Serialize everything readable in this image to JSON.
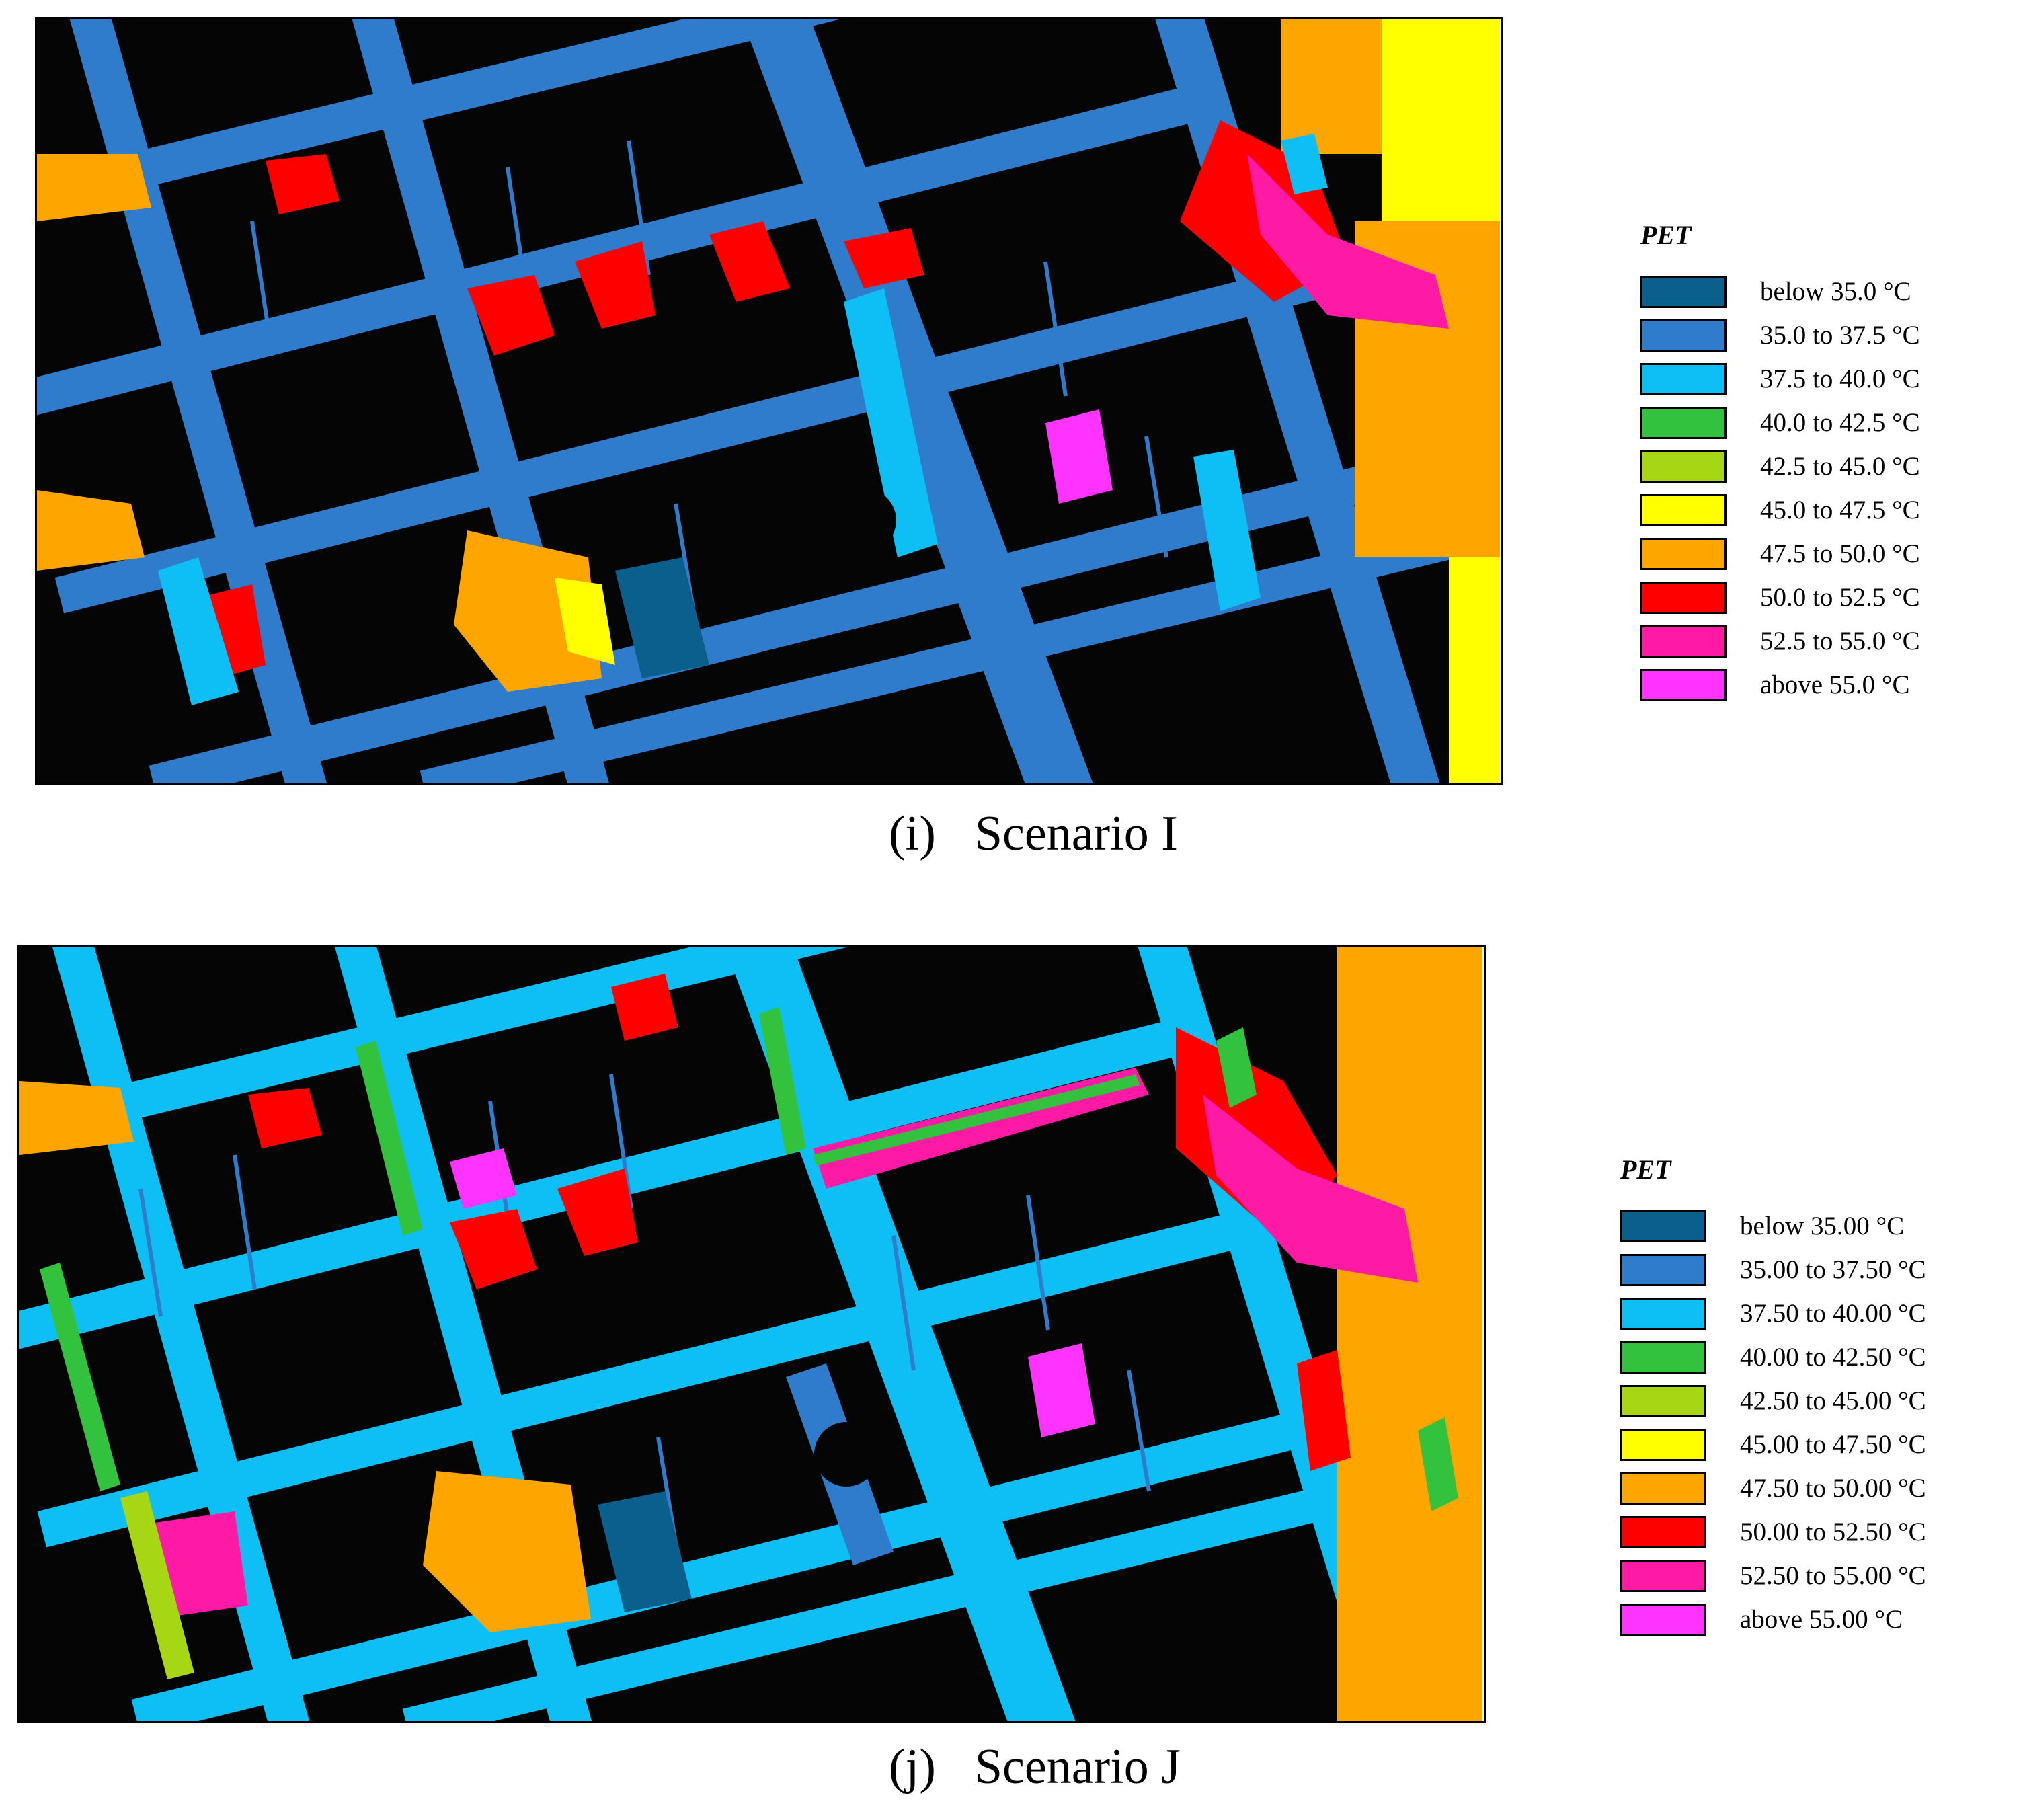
{
  "colors": {
    "buildings": "#050505",
    "below35": "#0a5f8c",
    "c35_375": "#2f7ccc",
    "c375_40": "#0dbff5",
    "c40_425": "#33c23d",
    "c425_45": "#a6d614",
    "c45_475": "#ffff00",
    "c475_50": "#ffa500",
    "c50_525": "#ff0000",
    "c525_55": "#ff1aa6",
    "above55": "#ff33ff"
  },
  "panels": [
    {
      "id": "i",
      "caption_tag": "(i)",
      "caption_title": "Scenario I",
      "legend_title": "PET",
      "legend": [
        {
          "label": "below 35.0 °C",
          "color": "#0a5f8c"
        },
        {
          "label": "35.0 to 37.5 °C",
          "color": "#2f7ccc"
        },
        {
          "label": "37.5 to 40.0 °C",
          "color": "#0dbff5"
        },
        {
          "label": "40.0 to 42.5 °C",
          "color": "#33c23d"
        },
        {
          "label": "42.5 to 45.0 °C",
          "color": "#a6d614"
        },
        {
          "label": "45.0 to 47.5 °C",
          "color": "#ffff00"
        },
        {
          "label": "47.5 to 50.0 °C",
          "color": "#ffa500"
        },
        {
          "label": "50.0 to 52.5 °C",
          "color": "#ff0000"
        },
        {
          "label": "52.5 to 55.0 °C",
          "color": "#ff1aa6"
        },
        {
          "label": "above 55.0 °C",
          "color": "#ff33ff"
        }
      ]
    },
    {
      "id": "j",
      "caption_tag": "(j)",
      "caption_title": "Scenario J",
      "legend_title": "PET",
      "legend": [
        {
          "label": "below 35.00 °C",
          "color": "#0a5f8c"
        },
        {
          "label": "35.00 to 37.50 °C",
          "color": "#2f7ccc"
        },
        {
          "label": "37.50 to 40.00 °C",
          "color": "#0dbff5"
        },
        {
          "label": "40.00 to 42.50 °C",
          "color": "#33c23d"
        },
        {
          "label": "42.50 to 45.00 °C",
          "color": "#a6d614"
        },
        {
          "label": "45.00 to 47.50 °C",
          "color": "#ffff00"
        },
        {
          "label": "47.50 to 50.00 °C",
          "color": "#ffa500"
        },
        {
          "label": "50.00 to 52.50 °C",
          "color": "#ff0000"
        },
        {
          "label": "52.50 to 55.00 °C",
          "color": "#ff1aa6"
        },
        {
          "label": "above 55.00 °C",
          "color": "#ff33ff"
        }
      ]
    }
  ]
}
